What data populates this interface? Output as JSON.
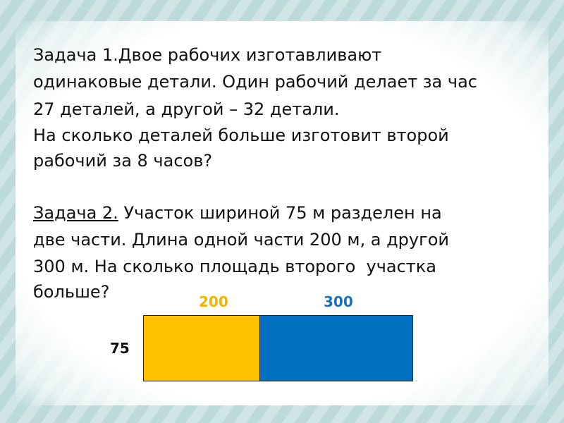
{
  "task1": {
    "lines": [
      "Задача 1.Двое рабочих изготавливают",
      "одинаковые детали. Один рабочий делает за час",
      "27 деталей, а другой – 32 детали.",
      "На сколько деталей больше изготовит второй",
      "рабочий за 8 часов?"
    ]
  },
  "task2": {
    "label": "Задача 2.",
    "lines": [
      " Участок шириной 75 м разделен на",
      "две части. Длина одной части 200 м, а другой",
      "300 м. На сколько площадь второго  участка",
      "больше?"
    ]
  },
  "diagram": {
    "length_1": "200",
    "length_2": "300",
    "width": "75"
  }
}
